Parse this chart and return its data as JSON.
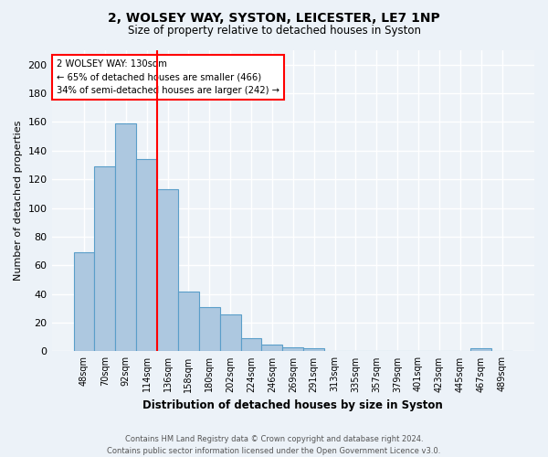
{
  "title_line1": "2, WOLSEY WAY, SYSTON, LEICESTER, LE7 1NP",
  "title_line2": "Size of property relative to detached houses in Syston",
  "xlabel": "Distribution of detached houses by size in Syston",
  "ylabel": "Number of detached properties",
  "categories": [
    "48sqm",
    "70sqm",
    "92sqm",
    "114sqm",
    "136sqm",
    "158sqm",
    "180sqm",
    "202sqm",
    "224sqm",
    "246sqm",
    "269sqm",
    "291sqm",
    "313sqm",
    "335sqm",
    "357sqm",
    "379sqm",
    "401sqm",
    "423sqm",
    "445sqm",
    "467sqm",
    "489sqm"
  ],
  "values": [
    69,
    129,
    159,
    134,
    113,
    42,
    31,
    26,
    9,
    5,
    3,
    2,
    0,
    0,
    0,
    0,
    0,
    0,
    0,
    2,
    0
  ],
  "bar_color": "#adc8e0",
  "bar_edge_color": "#5a9ec9",
  "red_line_index": 4,
  "annotation_line1": "2 WOLSEY WAY: 130sqm",
  "annotation_line2": "← 65% of detached houses are smaller (466)",
  "annotation_line3": "34% of semi-detached houses are larger (242) →",
  "footer_line1": "Contains HM Land Registry data © Crown copyright and database right 2024.",
  "footer_line2": "Contains public sector information licensed under the Open Government Licence v3.0.",
  "bg_color": "#ecf2f8",
  "plot_bg_color": "#eef3f8",
  "ylim": [
    0,
    210
  ],
  "yticks": [
    0,
    20,
    40,
    60,
    80,
    100,
    120,
    140,
    160,
    180,
    200
  ]
}
